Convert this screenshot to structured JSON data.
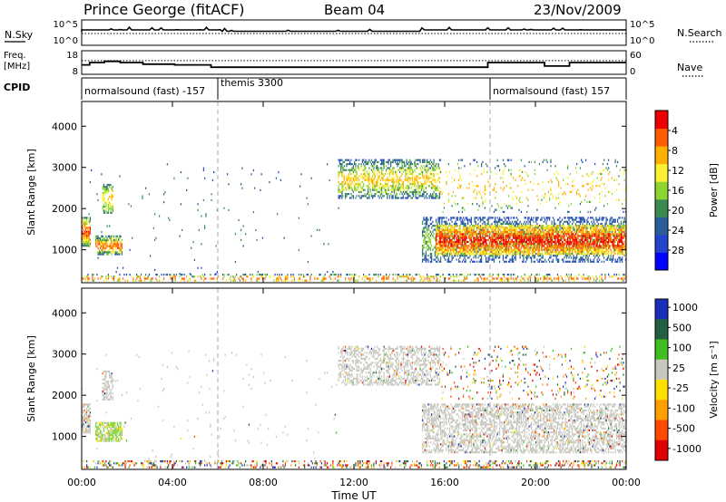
{
  "header": {
    "station": "Prince George (fitACF)",
    "beam": "Beam 04",
    "date": "23/Nov/2009"
  },
  "top_panel": {
    "nsky_label": "N.Sky",
    "nsky_ticks": [
      "10^5",
      "10^0"
    ],
    "nsearch_label": "N.Search",
    "nsearch_ticks": [
      "10^5",
      "10^0"
    ],
    "freq_label": "Freq.",
    "freq_unit": "[MHz]",
    "freq_ticks": [
      "18",
      "8"
    ],
    "nave_label": "Nave",
    "nave_ticks": [
      "60",
      "0"
    ],
    "cpid_label": "CPID",
    "cpid_segments": [
      {
        "label": "normalsound (fast) -157",
        "start_hour": 0,
        "end_hour": 6
      },
      {
        "label": "themis 3300",
        "start_hour": 6,
        "end_hour": 18
      },
      {
        "label": "normalsound (fast) 157",
        "start_hour": 18,
        "end_hour": 24
      }
    ],
    "freq_trace": [
      [
        0,
        12
      ],
      [
        0.35,
        12
      ],
      [
        0.35,
        13
      ],
      [
        1.0,
        13
      ],
      [
        1.0,
        13.5
      ],
      [
        1.7,
        13.5
      ],
      [
        1.7,
        13
      ],
      [
        2.7,
        13
      ],
      [
        2.7,
        12.3
      ],
      [
        4.1,
        12.3
      ],
      [
        4.1,
        12
      ],
      [
        5.7,
        12
      ],
      [
        5.7,
        11
      ],
      [
        17.9,
        11
      ],
      [
        17.9,
        13
      ],
      [
        20.4,
        13
      ],
      [
        20.4,
        11.5
      ],
      [
        21.5,
        11.5
      ],
      [
        21.5,
        13
      ],
      [
        24,
        13
      ]
    ],
    "freq_dotted_level": 13.8
  },
  "chart_data": [
    {
      "type": "heatmap",
      "title": "Power",
      "xlabel": "",
      "ylabel": "Slant Range [km]",
      "xlim": [
        0,
        24
      ],
      "ylim": [
        200,
        4600
      ],
      "x_ticks": [
        0,
        4,
        8,
        12,
        16,
        20,
        24
      ],
      "y_ticks": [
        1000,
        2000,
        3000,
        4000
      ],
      "colorbar": {
        "label": "Power [dB]",
        "range": [
          0,
          32
        ],
        "ticks": [
          "4",
          "8",
          "12",
          "16",
          "20",
          "24",
          "28"
        ],
        "colors": [
          "#0000ff",
          "#2244cc",
          "#2a5e98",
          "#3a8a50",
          "#8dd632",
          "#fdf030",
          "#ffb000",
          "#ff5d00",
          "#ee0000"
        ]
      },
      "scatter_regions": [
        {
          "x": [
            15.0,
            24.0
          ],
          "y": [
            700,
            1800
          ],
          "density": 0.45,
          "value": [
            4,
            16
          ]
        },
        {
          "x": [
            15.6,
            24.0
          ],
          "y": [
            900,
            1600
          ],
          "density": 0.75,
          "value": [
            16,
            30
          ]
        },
        {
          "x": [
            11.3,
            15.8
          ],
          "y": [
            2250,
            3200
          ],
          "density": 0.5,
          "value": [
            4,
            22
          ]
        },
        {
          "x": [
            0.0,
            0.4
          ],
          "y": [
            1100,
            1800
          ],
          "density": 0.75,
          "value": [
            8,
            30
          ]
        },
        {
          "x": [
            0.6,
            1.8
          ],
          "y": [
            900,
            1350
          ],
          "density": 0.7,
          "value": [
            4,
            28
          ]
        },
        {
          "x": [
            0.9,
            1.4
          ],
          "y": [
            1900,
            2600
          ],
          "density": 0.55,
          "value": [
            8,
            22
          ]
        },
        {
          "x": [
            15.8,
            24.0
          ],
          "y": [
            1900,
            3200
          ],
          "density": 0.08,
          "value": [
            4,
            24
          ]
        },
        {
          "x": [
            0.0,
            24.0
          ],
          "y": [
            230,
            420
          ],
          "density": 0.32,
          "value": [
            4,
            28
          ]
        },
        {
          "x": [
            0.0,
            11.3
          ],
          "y": [
            420,
            3100
          ],
          "density": 0.01,
          "value": [
            4,
            14
          ]
        }
      ]
    },
    {
      "type": "heatmap",
      "title": "Velocity",
      "xlabel": "Time UT",
      "ylabel": "Slant Range [km]",
      "xlim": [
        0,
        24
      ],
      "ylim": [
        200,
        4600
      ],
      "x_ticks": [
        0,
        4,
        8,
        12,
        16,
        20,
        24
      ],
      "x_tick_labels": [
        "00:00",
        "04:00",
        "08:00",
        "12:00",
        "16:00",
        "20:00",
        "00:00"
      ],
      "y_ticks": [
        1000,
        2000,
        3000,
        4000
      ],
      "colorbar": {
        "label": "Velocity [m s⁻¹]",
        "ticks": [
          "1000",
          "500",
          "100",
          "25",
          "-25",
          "-100",
          "-500",
          "-1000"
        ],
        "colors": [
          "#1a2eb8",
          "#236040",
          "#40c020",
          "#c8c8c0",
          "#ffdf00",
          "#ffa000",
          "#ff4a00",
          "#e00000"
        ]
      },
      "scatter_regions": [
        {
          "x": [
            15.0,
            24.0
          ],
          "y": [
            600,
            1800
          ],
          "density": 0.55,
          "value": [
            "gray"
          ]
        },
        {
          "x": [
            11.3,
            15.8
          ],
          "y": [
            2250,
            3200
          ],
          "density": 0.45,
          "value": [
            "gray"
          ]
        },
        {
          "x": [
            0.0,
            0.4
          ],
          "y": [
            1100,
            1800
          ],
          "density": 0.7,
          "value": [
            "gray"
          ]
        },
        {
          "x": [
            0.6,
            1.8
          ],
          "y": [
            900,
            1350
          ],
          "density": 0.7,
          "value": [
            "green"
          ]
        },
        {
          "x": [
            0.9,
            1.4
          ],
          "y": [
            1900,
            2600
          ],
          "density": 0.55,
          "value": [
            "gray"
          ]
        },
        {
          "x": [
            15.8,
            24.0
          ],
          "y": [
            1900,
            3200
          ],
          "density": 0.08,
          "value": [
            "mixed"
          ]
        },
        {
          "x": [
            0.0,
            24.0
          ],
          "y": [
            230,
            420
          ],
          "density": 0.32,
          "value": [
            "mixed"
          ]
        },
        {
          "x": [
            0.0,
            11.3
          ],
          "y": [
            420,
            3100
          ],
          "density": 0.01,
          "value": [
            "gray"
          ]
        }
      ]
    }
  ]
}
